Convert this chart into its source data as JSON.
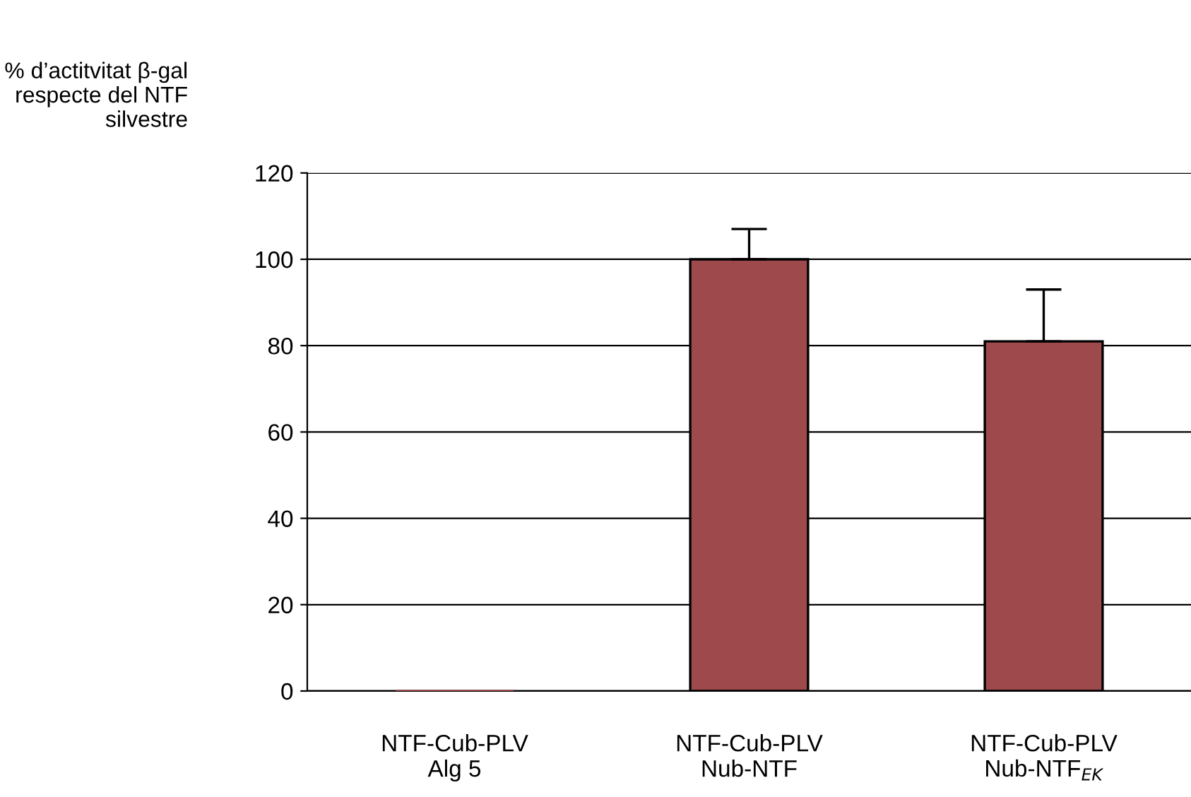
{
  "chart_data": {
    "type": "bar",
    "ylabel": "% d’actitvitat β-gal\nrespecte del NTF\nsilvestre",
    "categories": [
      "NTF-Cub-PLV\nAlg 5",
      "NTF-Cub-PLV\nNub-NTF",
      "NTF-Cub-PLV\nNub-NTF$_{EK}$"
    ],
    "values": [
      0,
      100,
      81
    ],
    "color": "#9e4a4c",
    "errors": [
      null,
      [
        100,
        107
      ],
      [
        81,
        93
      ]
    ],
    "ylim": [
      0,
      120
    ],
    "yticks": [
      0,
      20,
      40,
      60,
      80,
      100,
      120
    ],
    "grid": "y"
  }
}
